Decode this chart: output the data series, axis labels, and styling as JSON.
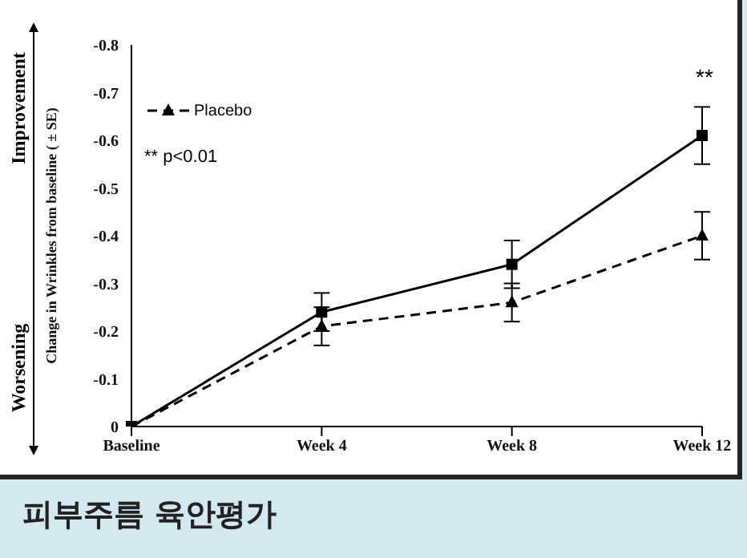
{
  "chart_data": {
    "type": "line",
    "ylabel": "Change in Wrinkles from baseline ( ± SE)",
    "categories": [
      "Baseline",
      "Week 4",
      "Week 8",
      "Week 12"
    ],
    "series": [
      {
        "color": "#000000",
        "marker": "square",
        "line_style": "solid",
        "values": [
          0,
          -0.24,
          -0.34,
          -0.61
        ],
        "errors": [
          null,
          0.04,
          0.05,
          0.06
        ]
      },
      {
        "name": "Placebo",
        "color": "#000000",
        "marker": "triangle",
        "line_style": "dashed",
        "values": [
          0,
          -0.21,
          -0.26,
          -0.4
        ],
        "errors": [
          null,
          0.04,
          0.04,
          0.05
        ]
      }
    ],
    "ylim": [
      0,
      -0.8
    ],
    "yticks": [
      -0.8,
      -0.7,
      -0.6,
      -0.5,
      -0.4,
      -0.3,
      -0.2,
      -0.1,
      0
    ],
    "grid": false,
    "legend": "top left",
    "annotations": [
      "**",
      "** p<0.01",
      "Improvement",
      "Worsening",
      "피부주름 육안평가"
    ]
  }
}
